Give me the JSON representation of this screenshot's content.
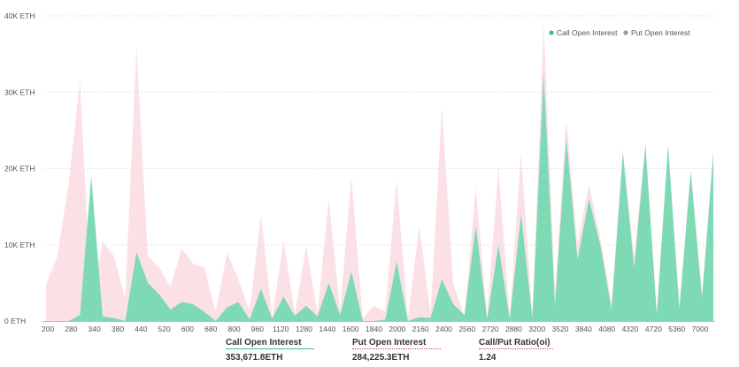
{
  "chart_data": {
    "type": "area",
    "y_unit_suffix": " ETH",
    "ylim": [
      0,
      40000
    ],
    "y_ticks": [
      "0 ETH",
      "10K ETH",
      "20K ETH",
      "30K ETH",
      "40K ETH"
    ],
    "y_tick_values": [
      0,
      10000,
      20000,
      30000,
      40000
    ],
    "x_tick_labels": [
      "200",
      "280",
      "340",
      "380",
      "440",
      "520",
      "600",
      "680",
      "800",
      "960",
      "1120",
      "1280",
      "1440",
      "1600",
      "1840",
      "2000",
      "2160",
      "2400",
      "2560",
      "2720",
      "2880",
      "3200",
      "3520",
      "3840",
      "4080",
      "4320",
      "4720",
      "5360",
      "7000"
    ],
    "grid": "horizontal-dashed",
    "legend_position": "top-right",
    "series": [
      {
        "name": "Call Open Interest",
        "color": "#7ed9b5",
        "values": [
          0,
          0,
          0,
          800,
          19000,
          600,
          400,
          0,
          9000,
          5000,
          3500,
          1500,
          2500,
          2200,
          1200,
          0,
          1800,
          2500,
          200,
          4200,
          300,
          3200,
          700,
          2000,
          600,
          5000,
          800,
          6500,
          0,
          0,
          200,
          7800,
          0,
          500,
          400,
          5500,
          2200,
          800,
          12500,
          200,
          10000,
          200,
          14000,
          400,
          32500,
          2000,
          24000,
          8000,
          16000,
          10000,
          1500,
          22000,
          7000,
          23000,
          800,
          23000,
          1500,
          19500,
          3000,
          22000
        ]
      },
      {
        "name": "Put  Open Interest",
        "color": "#fbe1e6",
        "values": [
          4800,
          8500,
          18000,
          31500,
          2000,
          10500,
          8500,
          3000,
          36000,
          8500,
          7000,
          4500,
          9500,
          7500,
          7000,
          1200,
          9000,
          5500,
          1200,
          14000,
          500,
          10500,
          1000,
          9800,
          1000,
          16000,
          1500,
          19000,
          400,
          2000,
          1200,
          18500,
          400,
          12500,
          1000,
          28000,
          5000,
          600,
          17500,
          700,
          20000,
          600,
          22000,
          700,
          39000,
          4000,
          26500,
          10000,
          18000,
          11000,
          2500,
          22500,
          8500,
          23500,
          1000,
          23000,
          2000,
          20000,
          3500,
          22500
        ]
      }
    ]
  },
  "stats": {
    "call_label": "Call Open Interest",
    "call_value": "353,671.8ETH",
    "put_label": "Put Open Interest",
    "put_value": "284,225.3ETH",
    "ratio_label": "Call/Put Ratio(oi)",
    "ratio_value": "1.24",
    "colors": {
      "call": "#3cc08c",
      "put": "#e03c5a"
    }
  }
}
